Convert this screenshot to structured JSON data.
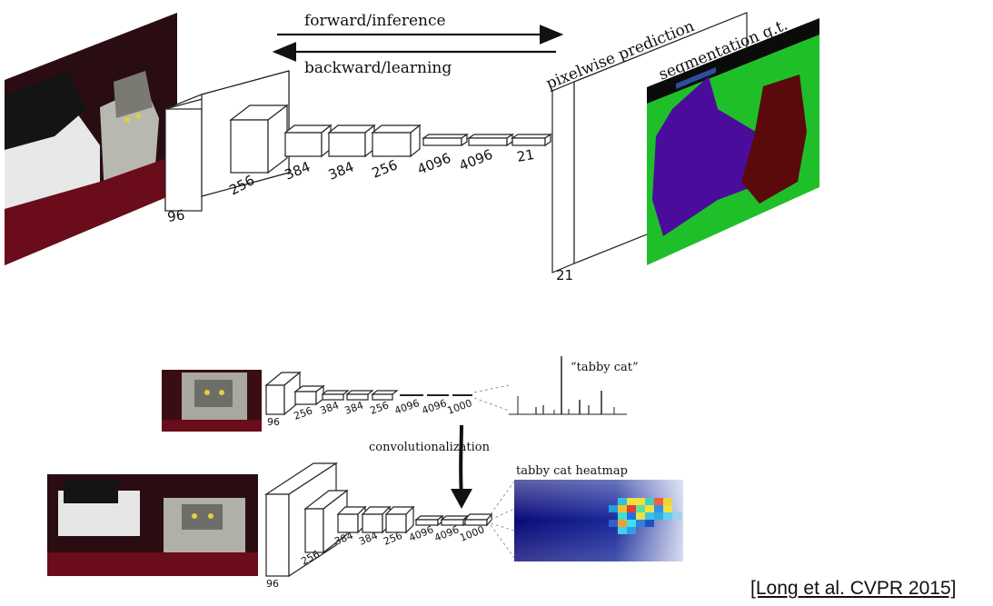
{
  "top_diagram": {
    "arrow_forward_label": "forward/inference",
    "arrow_backward_label": "backward/learning",
    "output_label": "pixelwise prediction",
    "gt_label": "segmentation g.t.",
    "layer_labels": [
      "96",
      "256",
      "384",
      "384",
      "256",
      "4096",
      "4096",
      "21"
    ],
    "output_depth_label": "21"
  },
  "bottom_diagram": {
    "class_label": "“tabby cat”",
    "classifier_layer_labels": [
      "96",
      "256",
      "384",
      "384",
      "256",
      "4096",
      "4096",
      "1000"
    ],
    "transform_label": "convolutionalization",
    "heatmap_label": "tabby cat heatmap",
    "fcn_layer_labels": [
      "96",
      "256",
      "384",
      "384",
      "256",
      "4096",
      "4096",
      "1000"
    ]
  },
  "citation": "[Long et al. CVPR 2015]",
  "colors": {
    "gt_background": "#1fbf2a",
    "gt_dog": "#4b0c9c",
    "gt_cat": "#5a0a0a",
    "heatmap_base": "#10107a"
  }
}
